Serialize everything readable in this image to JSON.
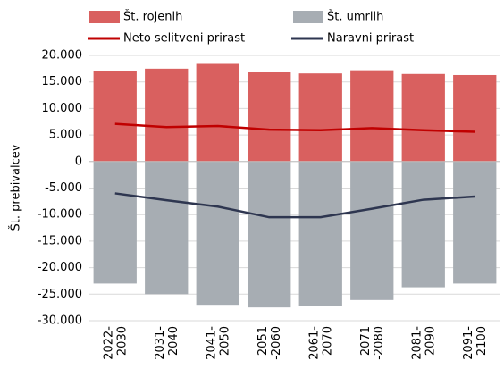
{
  "chart_data": {
    "type": "bar",
    "y_label": "Št. prebivalcev",
    "categories": [
      [
        "2022-",
        "2030"
      ],
      [
        "2031-",
        "2040"
      ],
      [
        "2041-",
        "2050"
      ],
      [
        "2051",
        "-2060"
      ],
      [
        "2061-",
        "2070"
      ],
      [
        "2071",
        "-2080"
      ],
      [
        "2081-",
        "2090"
      ],
      [
        "2091-",
        "2100"
      ]
    ],
    "series": [
      {
        "name": "Št. rojenih",
        "type": "bar",
        "color": "#d9605f",
        "values": [
          17000,
          17500,
          18400,
          16800,
          16600,
          17200,
          16500,
          16300
        ]
      },
      {
        "name": "Št. umrlih",
        "type": "bar",
        "color": "#a7adb3",
        "values": [
          -23000,
          -25000,
          -27000,
          -27500,
          -27300,
          -26100,
          -23700,
          -23000
        ]
      },
      {
        "name": "Neto selitveni prirast",
        "type": "line",
        "color": "#c00000",
        "values": [
          7100,
          6500,
          6700,
          6000,
          5900,
          6300,
          5900,
          5600
        ]
      },
      {
        "name": "Naravni prirast",
        "type": "line",
        "color": "#2e3650",
        "values": [
          -6000,
          -7300,
          -8500,
          -10500,
          -10500,
          -8900,
          -7200,
          -6600
        ]
      }
    ],
    "ylim": [
      -30000,
      20000
    ],
    "yticks": [
      {
        "value": -30000,
        "label": "-30.000"
      },
      {
        "value": -25000,
        "label": "-25.000"
      },
      {
        "value": -20000,
        "label": "-20.000"
      },
      {
        "value": -15000,
        "label": "-15.000"
      },
      {
        "value": -10000,
        "label": "-10.000"
      },
      {
        "value": -5000,
        "label": "-5.000"
      },
      0,
      {
        "value": 5000,
        "label": "5.000"
      },
      {
        "value": 10000,
        "label": "10.000"
      },
      {
        "value": 15000,
        "label": "15.000"
      },
      {
        "value": 20000,
        "label": "20.000"
      }
    ],
    "grid": true
  }
}
